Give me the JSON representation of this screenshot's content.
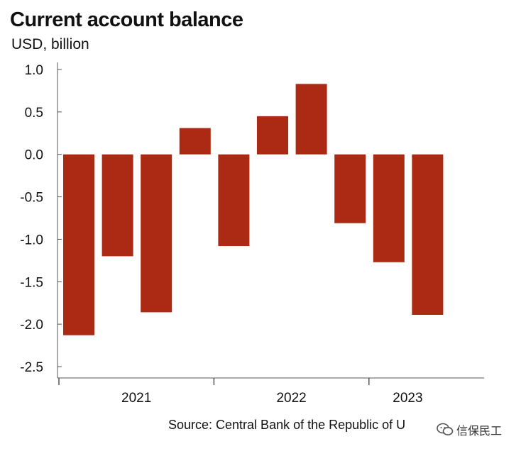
{
  "chart_data": {
    "type": "bar",
    "title": "Current account balance",
    "subtitle": "USD, billion",
    "source": "Source: Central Bank of the Republic of U",
    "watermark": "信保民工",
    "ylim": [
      -2.5,
      1.0
    ],
    "yticks": [
      1.0,
      0.5,
      0.0,
      -0.5,
      -1.0,
      -1.5,
      -2.0,
      -2.5
    ],
    "ytick_labels": [
      "1.0",
      "0.5",
      "0.0",
      "-0.5",
      "-1.0",
      "-1.5",
      "-2.0",
      "-2.5"
    ],
    "year_groups": [
      {
        "label": "2021",
        "start": 0,
        "count": 4
      },
      {
        "label": "2022",
        "start": 4,
        "count": 4
      },
      {
        "label": "2023",
        "start": 8,
        "count": 2
      }
    ],
    "values": [
      -2.13,
      -1.2,
      -1.86,
      0.31,
      -1.08,
      0.45,
      0.83,
      -0.81,
      -1.27,
      -1.89
    ],
    "bar_color": "#ac2a14",
    "grid": false,
    "legend": "none"
  }
}
